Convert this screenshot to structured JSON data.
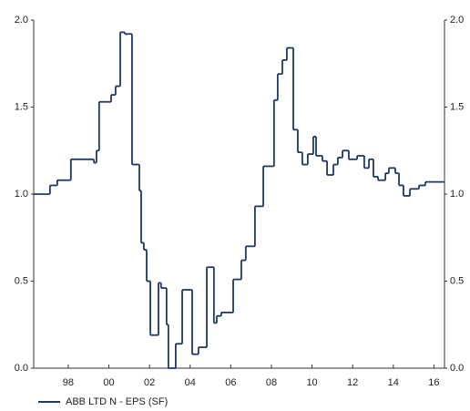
{
  "chart_data": {
    "type": "step",
    "series": [
      {
        "name": "ABB LTD N - EPS (SF)",
        "color": "#1f3864",
        "x": [
          1996.3,
          1997.1,
          1997.46,
          1998.13,
          1999.26,
          1999.39,
          1999.52,
          2000.11,
          2000.33,
          2000.56,
          2000.78,
          2001.14,
          2001.5,
          2001.59,
          2001.72,
          2001.86,
          2002.04,
          2002.44,
          2002.57,
          2002.84,
          2002.93,
          2003.29,
          2003.61,
          2004.1,
          2004.41,
          2004.82,
          2005.17,
          2005.31,
          2005.53,
          2006.12,
          2006.52,
          2006.74,
          2007.19,
          2007.6,
          2008.13,
          2008.31,
          2008.54,
          2008.76,
          2009.08,
          2009.3,
          2009.52,
          2009.79,
          2010.06,
          2010.2,
          2010.51,
          2010.74,
          2011.05,
          2011.27,
          2011.5,
          2011.81,
          2012.22,
          2012.57,
          2012.8,
          2013.02,
          2013.25,
          2013.61,
          2013.78,
          2014.1,
          2014.28,
          2014.5,
          2014.82,
          2015.26,
          2015.58
        ],
        "values": [
          1.0,
          1.05,
          1.08,
          1.2,
          1.18,
          1.25,
          1.53,
          1.57,
          1.62,
          1.93,
          1.92,
          1.17,
          1.02,
          0.72,
          0.68,
          0.5,
          0.19,
          0.49,
          0.46,
          0.25,
          0.0,
          0.14,
          0.45,
          0.08,
          0.12,
          0.58,
          0.26,
          0.3,
          0.32,
          0.51,
          0.62,
          0.7,
          0.93,
          1.16,
          1.54,
          1.69,
          1.77,
          1.84,
          1.37,
          1.24,
          1.17,
          1.23,
          1.33,
          1.22,
          1.19,
          1.11,
          1.17,
          1.21,
          1.25,
          1.2,
          1.22,
          1.15,
          1.2,
          1.1,
          1.08,
          1.12,
          1.15,
          1.12,
          1.05,
          0.99,
          1.03,
          1.05,
          1.07
        ]
      }
    ],
    "xlim": [
      1996.3,
      2016.52
    ],
    "xticks": [
      {
        "value": 1998,
        "label": "98"
      },
      {
        "value": 2000,
        "label": "00"
      },
      {
        "value": 2002,
        "label": "02"
      },
      {
        "value": 2004,
        "label": "04"
      },
      {
        "value": 2006,
        "label": "06"
      },
      {
        "value": 2008,
        "label": "08"
      },
      {
        "value": 2010,
        "label": "10"
      },
      {
        "value": 2012,
        "label": "12"
      },
      {
        "value": 2014,
        "label": "14"
      },
      {
        "value": 2016,
        "label": "16"
      }
    ],
    "ylim": [
      0,
      2
    ],
    "yticks": [
      {
        "value": 0,
        "label": "0.0"
      },
      0.5,
      {
        "value": 1,
        "label": "1.0"
      },
      1.5,
      {
        "value": 2,
        "label": "2.0"
      }
    ],
    "y2lim": [
      0,
      2
    ],
    "y2ticks": [
      {
        "value": 0,
        "label": "0.0"
      },
      0.5,
      {
        "value": 1,
        "label": "1.0"
      },
      1.5,
      {
        "value": 2,
        "label": "2.0"
      }
    ],
    "legend": "bottom-left"
  }
}
